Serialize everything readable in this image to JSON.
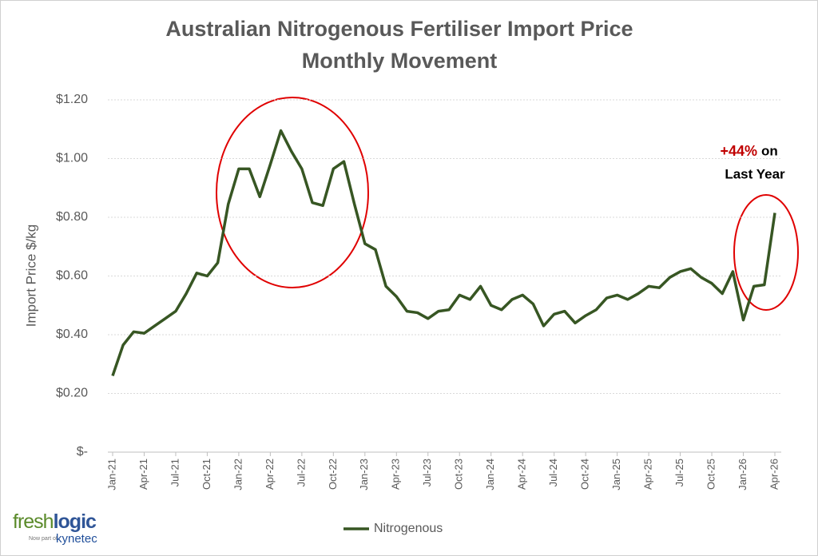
{
  "chart_data": {
    "type": "line",
    "title": "Australian Nitrogenous Fertiliser Import Price",
    "subtitle": "Monthly Movement",
    "y_label": "Import Price $/kg",
    "annotation": {
      "highlight": "+44%",
      "text": "on",
      "text2": "Last Year"
    },
    "categories": [
      "Jan-21",
      null,
      null,
      "Apr-21",
      null,
      null,
      "Jul-21",
      null,
      null,
      "Oct-21",
      null,
      null,
      "Jan-22",
      null,
      null,
      "Apr-22",
      null,
      null,
      "Jul-22",
      null,
      null,
      "Oct-22",
      null,
      null,
      "Jan-23",
      null,
      null,
      "Apr-23",
      null,
      null,
      "Jul-23",
      null,
      null,
      "Oct-23",
      null,
      null,
      "Jan-24",
      null,
      null,
      "Apr-24",
      null,
      null,
      "Jul-24",
      null,
      null,
      "Oct-24",
      null,
      null,
      "Jan-25",
      null,
      null,
      "Apr-25",
      null,
      null,
      "Jul-25",
      null,
      null,
      "Oct-25",
      null,
      null,
      "Jan-26",
      null,
      null,
      "Apr-26"
    ],
    "series": [
      {
        "name": "Nitrogenous",
        "color": "#375623",
        "values": [
          0.26,
          0.365,
          0.41,
          0.405,
          0.43,
          0.455,
          0.48,
          0.54,
          0.61,
          0.6,
          0.645,
          0.845,
          0.965,
          0.965,
          0.87,
          0.98,
          1.095,
          1.025,
          0.965,
          0.85,
          0.84,
          0.965,
          0.99,
          0.845,
          0.71,
          0.69,
          0.565,
          0.53,
          0.48,
          0.475,
          0.455,
          0.48,
          0.485,
          0.535,
          0.52,
          0.565,
          0.5,
          0.485,
          0.52,
          0.535,
          0.505,
          0.43,
          0.47,
          0.48,
          0.44,
          0.465,
          0.485,
          0.525,
          0.535,
          0.52,
          0.54,
          0.565,
          0.56,
          0.595,
          0.615,
          0.625,
          0.595,
          0.575,
          0.54,
          0.615,
          0.45,
          0.565,
          0.57,
          0.815
        ]
      }
    ],
    "ylim": [
      0,
      1.2
    ],
    "yticks": [
      {
        "value": 0,
        "label": "$-"
      },
      {
        "value": 0.2,
        "label": "$0.20"
      },
      {
        "value": 0.4,
        "label": "$0.40"
      },
      {
        "value": 0.6,
        "label": "$0.60"
      },
      {
        "value": 0.8,
        "label": "$0.80"
      },
      {
        "value": 1.0,
        "label": "$1.00"
      },
      {
        "value": 1.2,
        "label": "$1.20"
      }
    ],
    "grid": true,
    "legend": "bottom"
  },
  "logo": {
    "brand1": "fresh",
    "brand2": "logic",
    "tagline": "Now part of",
    "parent": "kynetec"
  }
}
